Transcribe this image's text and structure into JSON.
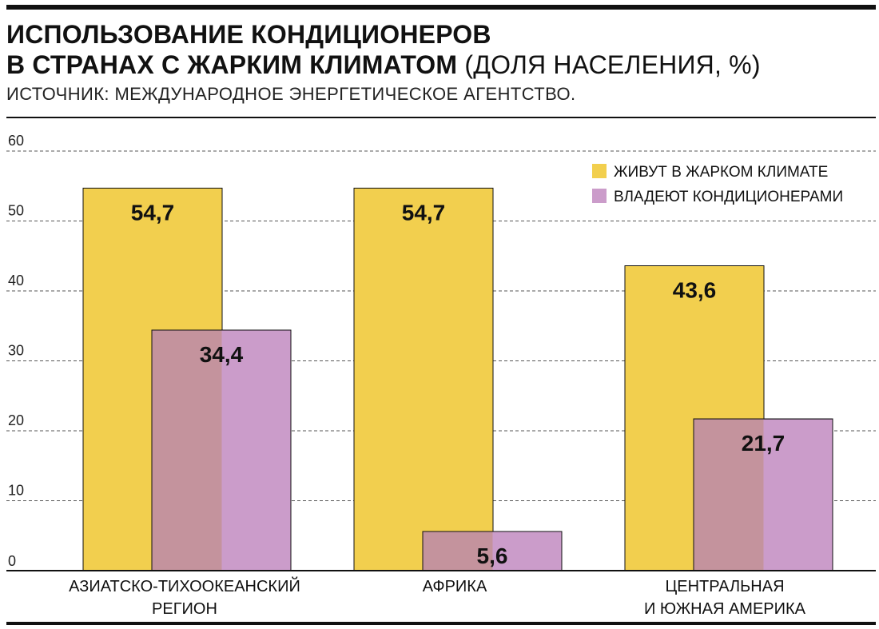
{
  "header": {
    "title_line1": "ИСПОЛЬЗОВАНИЕ КОНДИЦИОНЕРОВ",
    "title_line2": "В СТРАНАХ С ЖАРКИМ КЛИМАТОМ",
    "title_unit": "(ДОЛЯ НАСЕЛЕНИЯ, %)",
    "source": "ИСТОЧНИК: МЕЖДУНАРОДНОЕ ЭНЕРГЕТИЧЕСКОЕ АГЕНТСТВО."
  },
  "chart_data": {
    "type": "bar",
    "categories": [
      [
        "АЗИАТСКО-ТИХООКЕАНСКИЙ",
        "РЕГИОН"
      ],
      [
        "АФРИКА"
      ],
      [
        "ЦЕНТРАЛЬНАЯ",
        "И ЮЖНАЯ АМЕРИКА"
      ]
    ],
    "series": [
      {
        "name": "ЖИВУТ В ЖАРКОМ КЛИМАТЕ",
        "color": "#f2cf4e",
        "values": [
          54.7,
          54.7,
          43.6
        ],
        "labels": [
          "54,7",
          "54,7",
          "43,6"
        ]
      },
      {
        "name": "ВЛАДЕЮТ КОНДИЦИОНЕРАМИ",
        "color": "#cb9cca",
        "overlap_color": "#c4939d",
        "values": [
          34.4,
          5.6,
          21.7
        ],
        "labels": [
          "34,4",
          "5,6",
          "21,7"
        ]
      }
    ],
    "ylim": [
      0,
      60
    ],
    "yticks": [
      0,
      10,
      20,
      30,
      40,
      50,
      60
    ],
    "grid": true,
    "legend": "top-right"
  }
}
